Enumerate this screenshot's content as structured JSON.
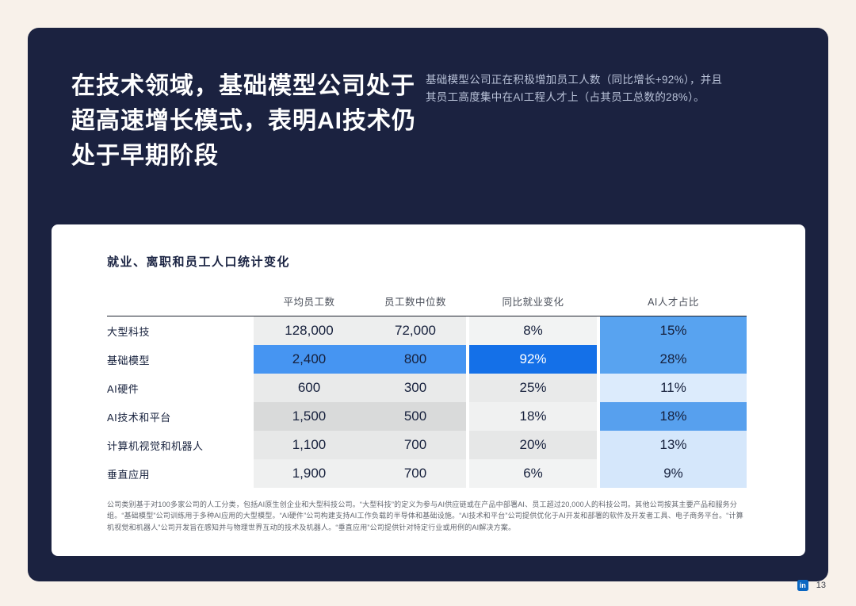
{
  "header": {
    "title": "在技术领域，基础模型公司处于\n超高速增长模式，表明AI技术仍\n处于早期阶段",
    "note": "基础模型公司正在积极增加员工人数（同比增长+92%），并且其员工高度集中在AI工程人才上（占其员工总数的28%）。"
  },
  "table": {
    "title": "就业、离职和员工人口统计变化",
    "columns": [
      "平均员工数",
      "员工数中位数",
      "同比就业变化",
      "AI人才占比"
    ],
    "rows": [
      {
        "label": "大型科技",
        "avg": "128,000",
        "median": "72,000",
        "yoy": "8%",
        "ai": "15%",
        "emp_bg": "#edeeee",
        "yoy_bg": "#f2f3f3",
        "ai_bg": "#58a3f0",
        "yoy_fg": "#16203c"
      },
      {
        "label": "基础模型",
        "avg": "2,400",
        "median": "800",
        "yoy": "92%",
        "ai": "28%",
        "emp_bg": "#4695f2",
        "yoy_bg": "#1470e8",
        "ai_bg": "#58a3f0",
        "yoy_fg": "#ffffff"
      },
      {
        "label": "AI硬件",
        "avg": "600",
        "median": "300",
        "yoy": "25%",
        "ai": "11%",
        "emp_bg": "#e9eaea",
        "yoy_bg": "#e9eaea",
        "ai_bg": "#dcebfc",
        "yoy_fg": "#16203c"
      },
      {
        "label": "AI技术和平台",
        "avg": "1,500",
        "median": "500",
        "yoy": "18%",
        "ai": "18%",
        "emp_bg": "#d9dada",
        "yoy_bg": "#f0f1f1",
        "ai_bg": "#57a0ee",
        "yoy_fg": "#16203c"
      },
      {
        "label": "计算机视觉和机器人",
        "avg": "1,100",
        "median": "700",
        "yoy": "20%",
        "ai": "13%",
        "emp_bg": "#e7e8e8",
        "yoy_bg": "#e6e7e7",
        "ai_bg": "#d5e7fb",
        "yoy_fg": "#16203c"
      },
      {
        "label": "垂直应用",
        "avg": "1,900",
        "median": "700",
        "yoy": "6%",
        "ai": "9%",
        "emp_bg": "#eff0f0",
        "yoy_bg": "#f2f3f3",
        "ai_bg": "#d5e7fb",
        "yoy_fg": "#16203c"
      }
    ],
    "footnote": "公司类别基于对100多家公司的人工分类，包括AI原生创企业和大型科技公司。“大型科技”的定义为参与AI供应链或在产品中部署AI、员工超过20,000人的科技公司。其他公司按其主要产品和服务分组。“基础模型”公司训练用于多种AI应用的大型模型。“AI硬件”公司构建支持AI工作负载的半导体和基础设施。“AI技术和平台”公司提供优化于AI开发和部署的软件及开发者工具、电子商务平台。“计算机视觉和机器人”公司开发旨在感知并与物理世界互动的技术及机器人。“垂直应用”公司提供针对特定行业或用例的AI解决方案。"
  },
  "footer": {
    "page_number": "13",
    "linkedin_label": "in"
  },
  "colors": {
    "slide_bg": "#1b2240",
    "page_bg": "#f8f1ea",
    "accent_strong_blue": "#1470e8",
    "accent_medium_blue": "#58a3f0",
    "accent_light_blue": "#d5e7fb",
    "linkedin_blue": "#0a66c2"
  },
  "chart_data": {
    "type": "table",
    "title": "就业、离职和员工人口统计变化",
    "categories": [
      "大型科技",
      "基础模型",
      "AI硬件",
      "AI技术和平台",
      "计算机视觉和机器人",
      "垂直应用"
    ],
    "series": [
      {
        "name": "平均员工数",
        "values": [
          128000,
          2400,
          600,
          1500,
          1100,
          1900
        ]
      },
      {
        "name": "员工数中位数",
        "values": [
          72000,
          800,
          300,
          500,
          700,
          700
        ]
      },
      {
        "name": "同比就业变化",
        "values": [
          "8%",
          "92%",
          "25%",
          "18%",
          "20%",
          "6%"
        ]
      },
      {
        "name": "AI人才占比",
        "values": [
          "15%",
          "28%",
          "11%",
          "18%",
          "13%",
          "9%"
        ]
      }
    ],
    "legend_position": "none",
    "grid": false
  }
}
